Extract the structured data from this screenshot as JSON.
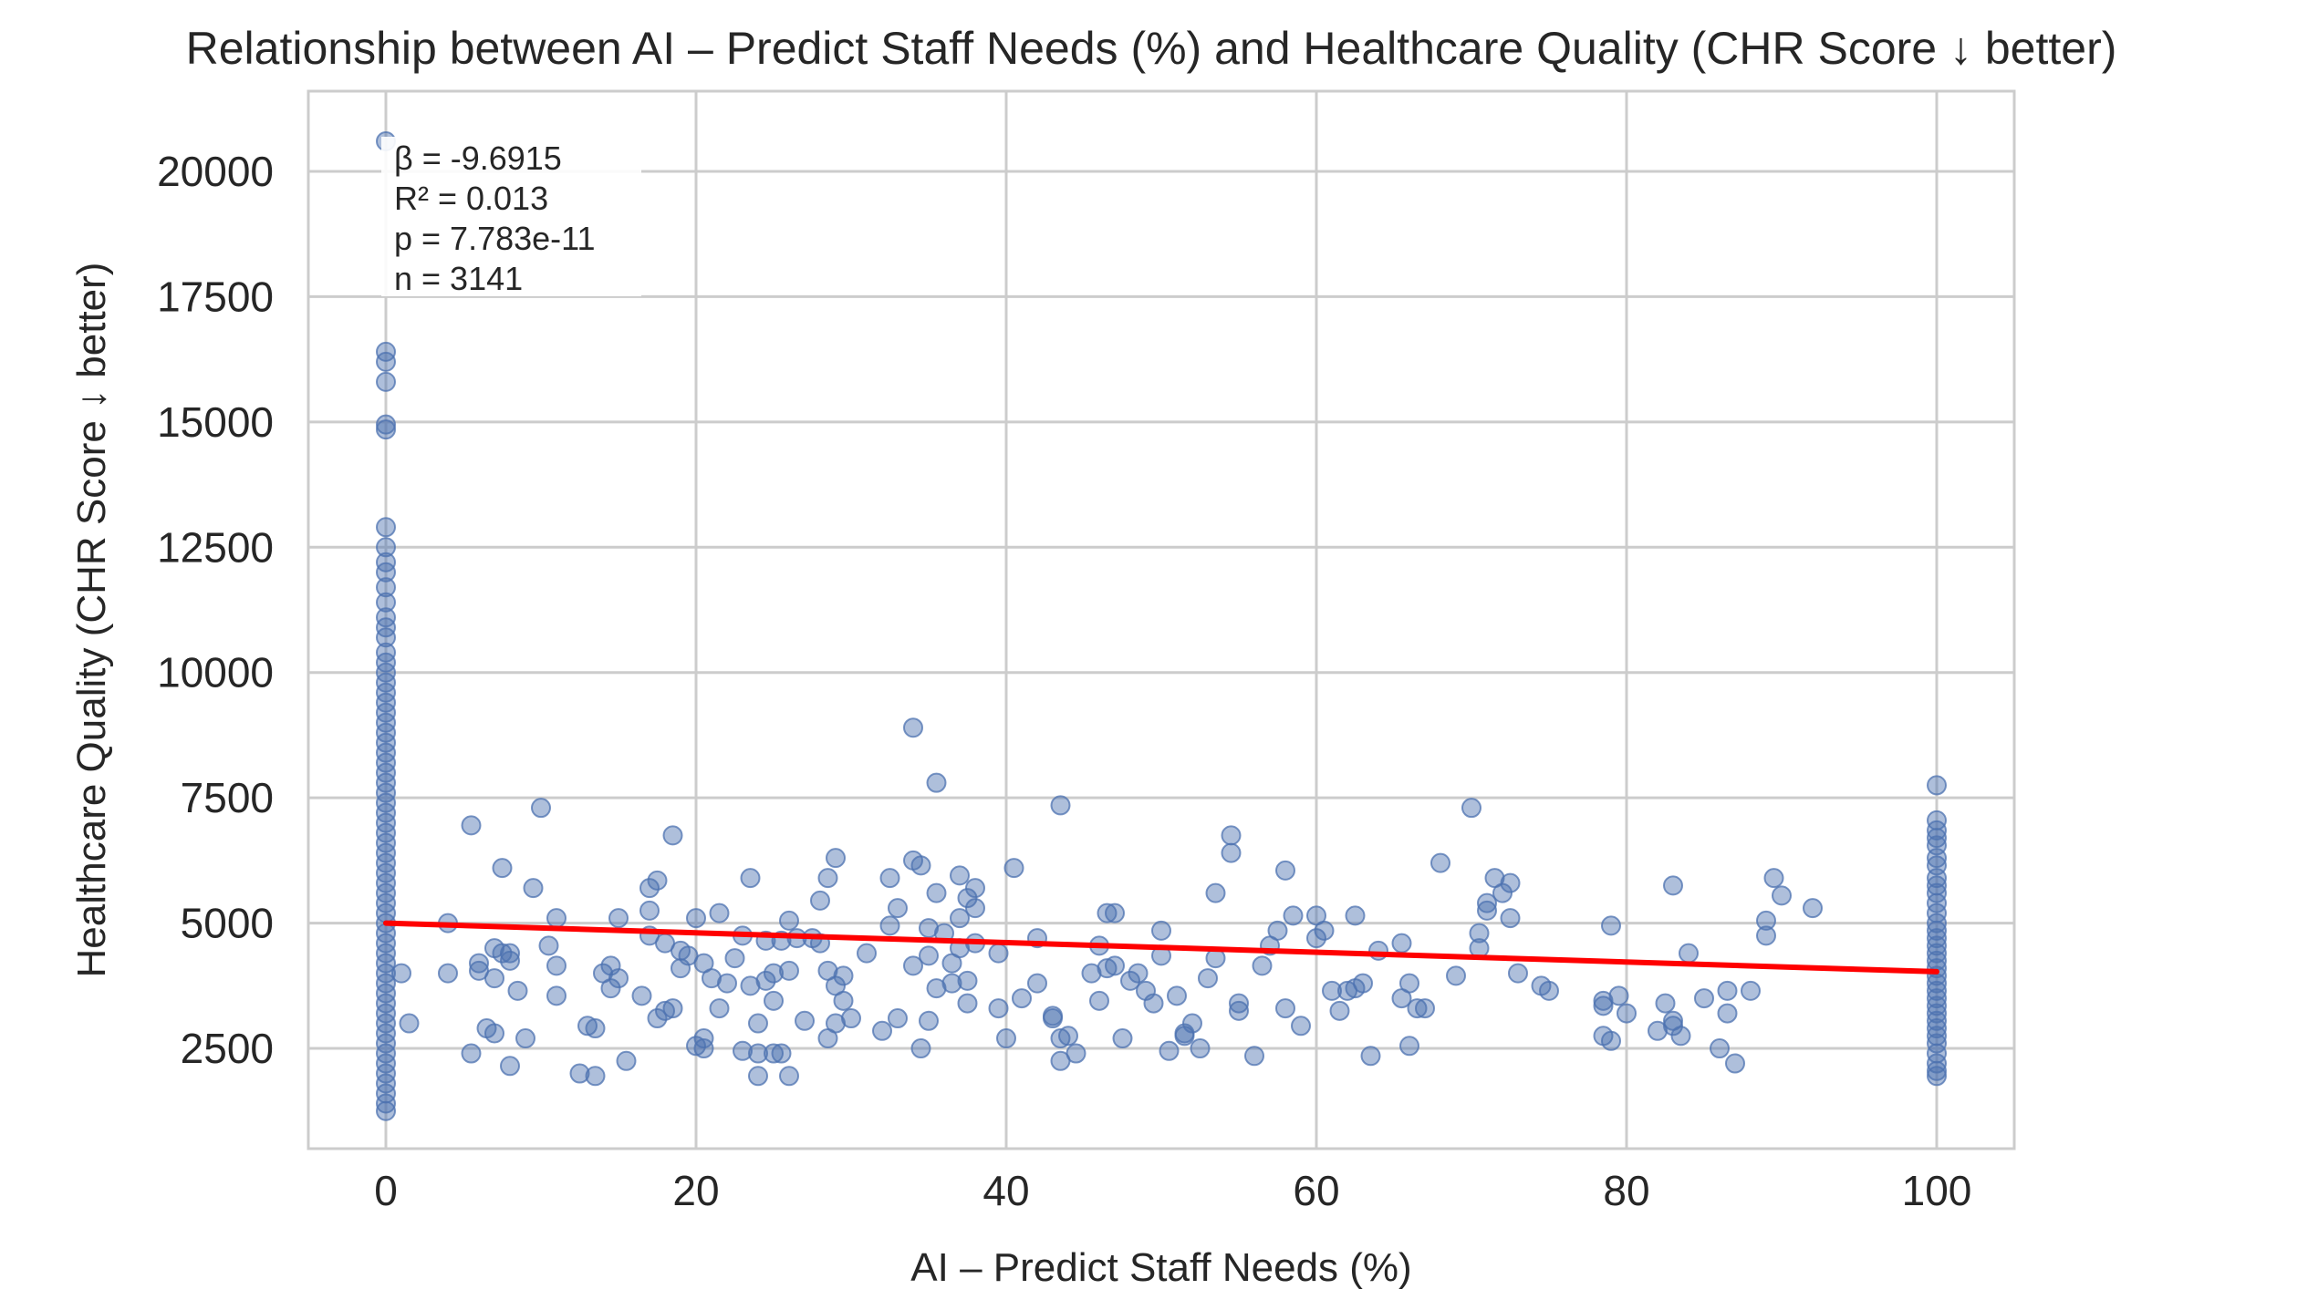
{
  "chart_data": {
    "type": "scatter",
    "title": "Relationship between AI – Predict Staff Needs (%) and Healthcare Quality (CHR Score ↓ better)",
    "xlabel": "AI – Predict Staff Needs (%)",
    "ylabel": "Healthcare Quality (CHR Score ↓ better)",
    "xlim": [
      -5,
      105
    ],
    "ylim": [
      500,
      21600
    ],
    "x_ticks": [
      "0",
      "20",
      "40",
      "60",
      "80",
      "100"
    ],
    "y_ticks": [
      "2500",
      "5000",
      "7500",
      "10000",
      "12500",
      "15000",
      "17500",
      "20000"
    ],
    "grid": true,
    "point_color": "#4c72b0",
    "line_color": "#ff0000",
    "regression_line": {
      "x": [
        0,
        100
      ],
      "y": [
        5000,
        4030
      ]
    },
    "stats": [
      "β = -9.6915",
      "R² = 0.013",
      "p = 7.783e-11",
      "n = 3141"
    ],
    "points_x0": [
      20600,
      16400,
      16200,
      15800,
      14950,
      14850,
      12900,
      12500,
      12200,
      12000,
      11700,
      11400,
      11100,
      10900,
      10700,
      10400,
      10200,
      10000,
      9800,
      9600,
      9400,
      9200,
      9000,
      8800,
      8600,
      8400,
      8200,
      8000,
      7800,
      7600,
      7400,
      7200,
      7000,
      6800,
      6600,
      6400,
      6200,
      6000,
      5800,
      5600,
      5400,
      5200,
      5000,
      4800,
      4600,
      4400,
      4200,
      4000,
      3800,
      3600,
      3400,
      3200,
      3000,
      2800,
      2600,
      2400,
      2200,
      2000,
      1800,
      1600,
      1400,
      1250
    ],
    "points_x100": [
      7750,
      7050,
      6850,
      6700,
      6550,
      6300,
      6150,
      5900,
      5750,
      5600,
      5400,
      5200,
      5000,
      4850,
      4700,
      4550,
      4400,
      4250,
      4100,
      3950,
      3800,
      3650,
      3500,
      3350,
      3200,
      3050,
      2900,
      2750,
      2600,
      2400,
      2200,
      2050,
      1950
    ],
    "points_mid": [
      [
        1,
        4000
      ],
      [
        1.5,
        3000
      ],
      [
        4,
        4000
      ],
      [
        4,
        5000
      ],
      [
        5.5,
        6950
      ],
      [
        5.5,
        2400
      ],
      [
        6,
        4050
      ],
      [
        6,
        4200
      ],
      [
        6.5,
        2900
      ],
      [
        7,
        2800
      ],
      [
        7,
        4500
      ],
      [
        7,
        3900
      ],
      [
        7.5,
        4400
      ],
      [
        7.5,
        6100
      ],
      [
        8,
        4250
      ],
      [
        8,
        4400
      ],
      [
        8,
        2150
      ],
      [
        8.5,
        3650
      ],
      [
        9,
        2700
      ],
      [
        9.5,
        5700
      ],
      [
        10,
        7300
      ],
      [
        10.5,
        4550
      ],
      [
        11,
        3550
      ],
      [
        11,
        4150
      ],
      [
        11,
        5100
      ],
      [
        12.5,
        2000
      ],
      [
        13,
        2950
      ],
      [
        13.5,
        2900
      ],
      [
        13.5,
        1950
      ],
      [
        14,
        4000
      ],
      [
        14.5,
        3700
      ],
      [
        14.5,
        4150
      ],
      [
        15,
        5100
      ],
      [
        15,
        3900
      ],
      [
        15.5,
        2250
      ],
      [
        16.5,
        3550
      ],
      [
        17,
        5700
      ],
      [
        17,
        5250
      ],
      [
        17,
        4750
      ],
      [
        17.5,
        3100
      ],
      [
        17.5,
        5850
      ],
      [
        18,
        3250
      ],
      [
        18,
        4600
      ],
      [
        18.5,
        3300
      ],
      [
        18.5,
        6750
      ],
      [
        19,
        4450
      ],
      [
        19,
        4100
      ],
      [
        19.5,
        4350
      ],
      [
        20,
        2550
      ],
      [
        20,
        5100
      ],
      [
        20.5,
        4200
      ],
      [
        20.5,
        2500
      ],
      [
        20.5,
        2700
      ],
      [
        21,
        3900
      ],
      [
        21.5,
        5200
      ],
      [
        21.5,
        3300
      ],
      [
        22,
        3800
      ],
      [
        22.5,
        4300
      ],
      [
        23,
        2450
      ],
      [
        23,
        4750
      ],
      [
        23.5,
        3750
      ],
      [
        23.5,
        5900
      ],
      [
        24,
        3000
      ],
      [
        24,
        1950
      ],
      [
        24,
        2400
      ],
      [
        24.5,
        3850
      ],
      [
        24.5,
        4650
      ],
      [
        25,
        3450
      ],
      [
        25,
        4000
      ],
      [
        25,
        2400
      ],
      [
        25.5,
        4650
      ],
      [
        25.5,
        2400
      ],
      [
        26,
        1950
      ],
      [
        26,
        4050
      ],
      [
        26,
        5050
      ],
      [
        26.5,
        4700
      ],
      [
        27,
        3050
      ],
      [
        27.5,
        4700
      ],
      [
        28,
        4600
      ],
      [
        28,
        5450
      ],
      [
        28.5,
        2700
      ],
      [
        28.5,
        4050
      ],
      [
        28.5,
        5900
      ],
      [
        29,
        6300
      ],
      [
        29,
        3000
      ],
      [
        29,
        3750
      ],
      [
        29.5,
        3950
      ],
      [
        29.5,
        3450
      ],
      [
        30,
        3100
      ],
      [
        31,
        4400
      ],
      [
        32,
        2850
      ],
      [
        32.5,
        5900
      ],
      [
        32.5,
        4950
      ],
      [
        33,
        5300
      ],
      [
        33,
        3100
      ],
      [
        34,
        8900
      ],
      [
        34,
        6250
      ],
      [
        34,
        4150
      ],
      [
        34.5,
        6150
      ],
      [
        34.5,
        2500
      ],
      [
        35,
        4900
      ],
      [
        35,
        3050
      ],
      [
        35,
        4350
      ],
      [
        35.5,
        5600
      ],
      [
        35.5,
        7800
      ],
      [
        35.5,
        3700
      ],
      [
        36,
        4800
      ],
      [
        36.5,
        4200
      ],
      [
        36.5,
        3800
      ],
      [
        37,
        5950
      ],
      [
        37,
        5100
      ],
      [
        37,
        4500
      ],
      [
        37.5,
        3400
      ],
      [
        37.5,
        5500
      ],
      [
        37.5,
        3850
      ],
      [
        38,
        5700
      ],
      [
        38,
        5300
      ],
      [
        38,
        4600
      ],
      [
        39.5,
        3300
      ],
      [
        39.5,
        4400
      ],
      [
        40,
        2700
      ],
      [
        40.5,
        6100
      ],
      [
        41,
        3500
      ],
      [
        42,
        4700
      ],
      [
        42,
        3800
      ],
      [
        43,
        3150
      ],
      [
        43,
        3100
      ],
      [
        43.5,
        7350
      ],
      [
        43.5,
        2700
      ],
      [
        43.5,
        2250
      ],
      [
        44,
        2750
      ],
      [
        44.5,
        2400
      ],
      [
        45.5,
        4000
      ],
      [
        46,
        4550
      ],
      [
        46,
        3450
      ],
      [
        46.5,
        4100
      ],
      [
        46.5,
        5200
      ],
      [
        47,
        4150
      ],
      [
        47,
        5200
      ],
      [
        47.5,
        2700
      ],
      [
        48,
        3850
      ],
      [
        48.5,
        4000
      ],
      [
        49,
        3650
      ],
      [
        49.5,
        3400
      ],
      [
        50,
        4350
      ],
      [
        50,
        4850
      ],
      [
        50.5,
        2450
      ],
      [
        51,
        3550
      ],
      [
        51.5,
        2750
      ],
      [
        51.5,
        2800
      ],
      [
        52,
        3000
      ],
      [
        52.5,
        2500
      ],
      [
        53,
        3900
      ],
      [
        53.5,
        5600
      ],
      [
        53.5,
        4300
      ],
      [
        54.5,
        6750
      ],
      [
        54.5,
        6400
      ],
      [
        55,
        3250
      ],
      [
        55,
        3400
      ],
      [
        56,
        2350
      ],
      [
        56.5,
        4150
      ],
      [
        57,
        4550
      ],
      [
        57.5,
        4850
      ],
      [
        58,
        6050
      ],
      [
        58,
        3300
      ],
      [
        58.5,
        5150
      ],
      [
        59,
        2950
      ],
      [
        60,
        5150
      ],
      [
        60,
        4700
      ],
      [
        60.5,
        4850
      ],
      [
        61,
        3650
      ],
      [
        61.5,
        3250
      ],
      [
        62,
        3650
      ],
      [
        62.5,
        3700
      ],
      [
        62.5,
        5150
      ],
      [
        63,
        3800
      ],
      [
        63.5,
        2350
      ],
      [
        64,
        4450
      ],
      [
        65.5,
        3500
      ],
      [
        65.5,
        4600
      ],
      [
        66,
        3800
      ],
      [
        66,
        2550
      ],
      [
        66.5,
        3300
      ],
      [
        67,
        3300
      ],
      [
        68,
        6200
      ],
      [
        69,
        3950
      ],
      [
        70,
        7300
      ],
      [
        70.5,
        4500
      ],
      [
        70.5,
        4800
      ],
      [
        71,
        5400
      ],
      [
        71,
        5250
      ],
      [
        71.5,
        5900
      ],
      [
        72,
        5600
      ],
      [
        72.5,
        5800
      ],
      [
        72.5,
        5100
      ],
      [
        73,
        4000
      ],
      [
        74.5,
        3750
      ],
      [
        75,
        3650
      ],
      [
        78.5,
        3350
      ],
      [
        78.5,
        3450
      ],
      [
        78.5,
        2750
      ],
      [
        79,
        4950
      ],
      [
        79,
        2650
      ],
      [
        79.5,
        3550
      ],
      [
        80,
        3200
      ],
      [
        82,
        2850
      ],
      [
        82.5,
        3400
      ],
      [
        83,
        2950
      ],
      [
        83,
        3050
      ],
      [
        83,
        5750
      ],
      [
        83.5,
        2750
      ],
      [
        84,
        4400
      ],
      [
        85,
        3500
      ],
      [
        86,
        2500
      ],
      [
        86.5,
        3200
      ],
      [
        86.5,
        3650
      ],
      [
        87,
        2200
      ],
      [
        88,
        3650
      ],
      [
        89,
        4750
      ],
      [
        89,
        5050
      ],
      [
        89.5,
        5900
      ],
      [
        90,
        5550
      ],
      [
        92,
        5300
      ]
    ]
  }
}
